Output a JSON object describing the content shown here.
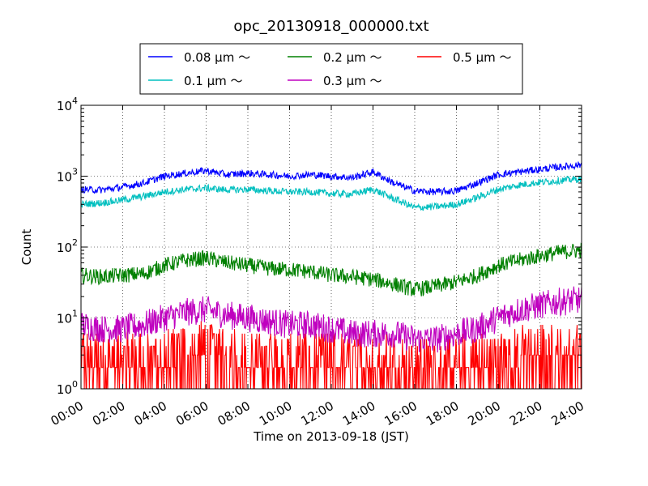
{
  "chart_data": {
    "type": "line",
    "title": "opc_20130918_000000.txt",
    "xlabel": "Time on 2013-09-18 (JST)",
    "ylabel": "Count",
    "xlim": [
      "00:00",
      "24:00"
    ],
    "ylim": [
      1,
      10000
    ],
    "yscale": "log",
    "grid": true,
    "legend_placement": "top-center",
    "x_tick_labels": [
      "00:00",
      "02:00",
      "04:00",
      "06:00",
      "08:00",
      "10:00",
      "12:00",
      "14:00",
      "16:00",
      "18:00",
      "20:00",
      "22:00",
      "24:00"
    ],
    "y_tick_labels": [
      {
        "base": "10",
        "exp": "0"
      },
      {
        "base": "10",
        "exp": "1"
      },
      {
        "base": "10",
        "exp": "2"
      },
      {
        "base": "10",
        "exp": "3"
      },
      {
        "base": "10",
        "exp": "4"
      }
    ],
    "series": [
      {
        "name": "0.08 μm ～",
        "color": "#0000ff",
        "x": [
          "00:00",
          "01:00",
          "02:00",
          "03:00",
          "04:00",
          "05:00",
          "06:00",
          "07:00",
          "08:00",
          "09:00",
          "10:00",
          "11:00",
          "12:00",
          "13:00",
          "14:00",
          "15:00",
          "16:00",
          "17:00",
          "18:00",
          "19:00",
          "20:00",
          "21:00",
          "22:00",
          "23:00",
          "24:00"
        ],
        "values": [
          650,
          640,
          700,
          800,
          1000,
          1100,
          1200,
          1050,
          1100,
          1050,
          1000,
          1050,
          1000,
          950,
          1150,
          800,
          620,
          600,
          620,
          800,
          1050,
          1150,
          1250,
          1350,
          1450
        ]
      },
      {
        "name": "0.1 μm ～",
        "color": "#00bfbf",
        "x": [
          "00:00",
          "01:00",
          "02:00",
          "03:00",
          "04:00",
          "05:00",
          "06:00",
          "07:00",
          "08:00",
          "09:00",
          "10:00",
          "11:00",
          "12:00",
          "13:00",
          "14:00",
          "15:00",
          "16:00",
          "17:00",
          "18:00",
          "19:00",
          "20:00",
          "21:00",
          "22:00",
          "23:00",
          "24:00"
        ],
        "values": [
          400,
          420,
          460,
          520,
          600,
          650,
          680,
          640,
          650,
          620,
          600,
          600,
          570,
          560,
          650,
          480,
          360,
          370,
          400,
          500,
          650,
          750,
          820,
          870,
          920
        ]
      },
      {
        "name": "0.2 μm ～",
        "color": "#008000",
        "x": [
          "00:00",
          "01:00",
          "02:00",
          "03:00",
          "04:00",
          "05:00",
          "06:00",
          "07:00",
          "08:00",
          "09:00",
          "10:00",
          "11:00",
          "12:00",
          "13:00",
          "14:00",
          "15:00",
          "16:00",
          "17:00",
          "18:00",
          "19:00",
          "20:00",
          "21:00",
          "22:00",
          "23:00",
          "24:00"
        ],
        "values": [
          40,
          38,
          40,
          42,
          55,
          65,
          70,
          60,
          55,
          50,
          48,
          45,
          40,
          38,
          35,
          30,
          25,
          28,
          32,
          40,
          55,
          65,
          75,
          85,
          90
        ]
      },
      {
        "name": "0.3 μm ～",
        "color": "#bf00bf",
        "x": [
          "00:00",
          "01:00",
          "02:00",
          "03:00",
          "04:00",
          "05:00",
          "06:00",
          "07:00",
          "08:00",
          "09:00",
          "10:00",
          "11:00",
          "12:00",
          "13:00",
          "14:00",
          "15:00",
          "16:00",
          "17:00",
          "18:00",
          "19:00",
          "20:00",
          "21:00",
          "22:00",
          "23:00",
          "24:00"
        ],
        "values": [
          8,
          7,
          7,
          8,
          10,
          12,
          13,
          11,
          10,
          9,
          8,
          8,
          7,
          6,
          6,
          6,
          5,
          5,
          6,
          7,
          10,
          13,
          15,
          17,
          18
        ]
      },
      {
        "name": "0.5 μm ～",
        "color": "#ff0000",
        "x": [
          "00:00",
          "01:00",
          "02:00",
          "03:00",
          "04:00",
          "05:00",
          "06:00",
          "07:00",
          "08:00",
          "09:00",
          "10:00",
          "11:00",
          "12:00",
          "13:00",
          "14:00",
          "15:00",
          "16:00",
          "17:00",
          "18:00",
          "19:00",
          "20:00",
          "21:00",
          "22:00",
          "23:00",
          "24:00"
        ],
        "values": [
          2,
          2,
          2,
          2,
          2,
          2.5,
          3,
          2.5,
          2,
          2,
          2,
          2,
          2,
          1.8,
          1.8,
          1.8,
          1.5,
          1.5,
          1.6,
          2,
          2,
          2.5,
          2.5,
          2.5,
          2.5
        ]
      }
    ]
  }
}
